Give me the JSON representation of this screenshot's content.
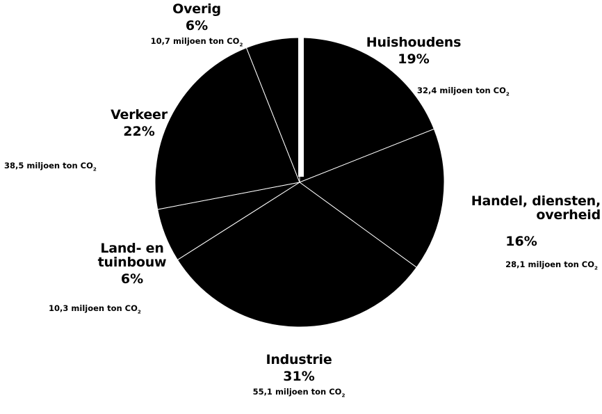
{
  "chart_data": {
    "type": "pie",
    "title": "",
    "unit_suffix": "miljoen ton CO",
    "unit_subscript": "2",
    "slice_color": "#000000",
    "separator_color": "#ffffff",
    "slices": [
      {
        "label": "Huishoudens",
        "percent": 19,
        "percent_label": "19%",
        "amount_label": "32,4"
      },
      {
        "label": "Handel, diensten, overheid",
        "percent": 16,
        "percent_label": "16%",
        "amount_label": "28,1"
      },
      {
        "label": "Industrie",
        "percent": 31,
        "percent_label": "31%",
        "amount_label": "55,1"
      },
      {
        "label": "Land- en tuinbouw",
        "percent": 6,
        "percent_label": "6%",
        "amount_label": "10,3"
      },
      {
        "label": "Verkeer",
        "percent": 22,
        "percent_label": "22%",
        "amount_label": "38,5"
      },
      {
        "label": "Overig",
        "percent": 6,
        "percent_label": "6%",
        "amount_label": "10,7"
      }
    ]
  }
}
